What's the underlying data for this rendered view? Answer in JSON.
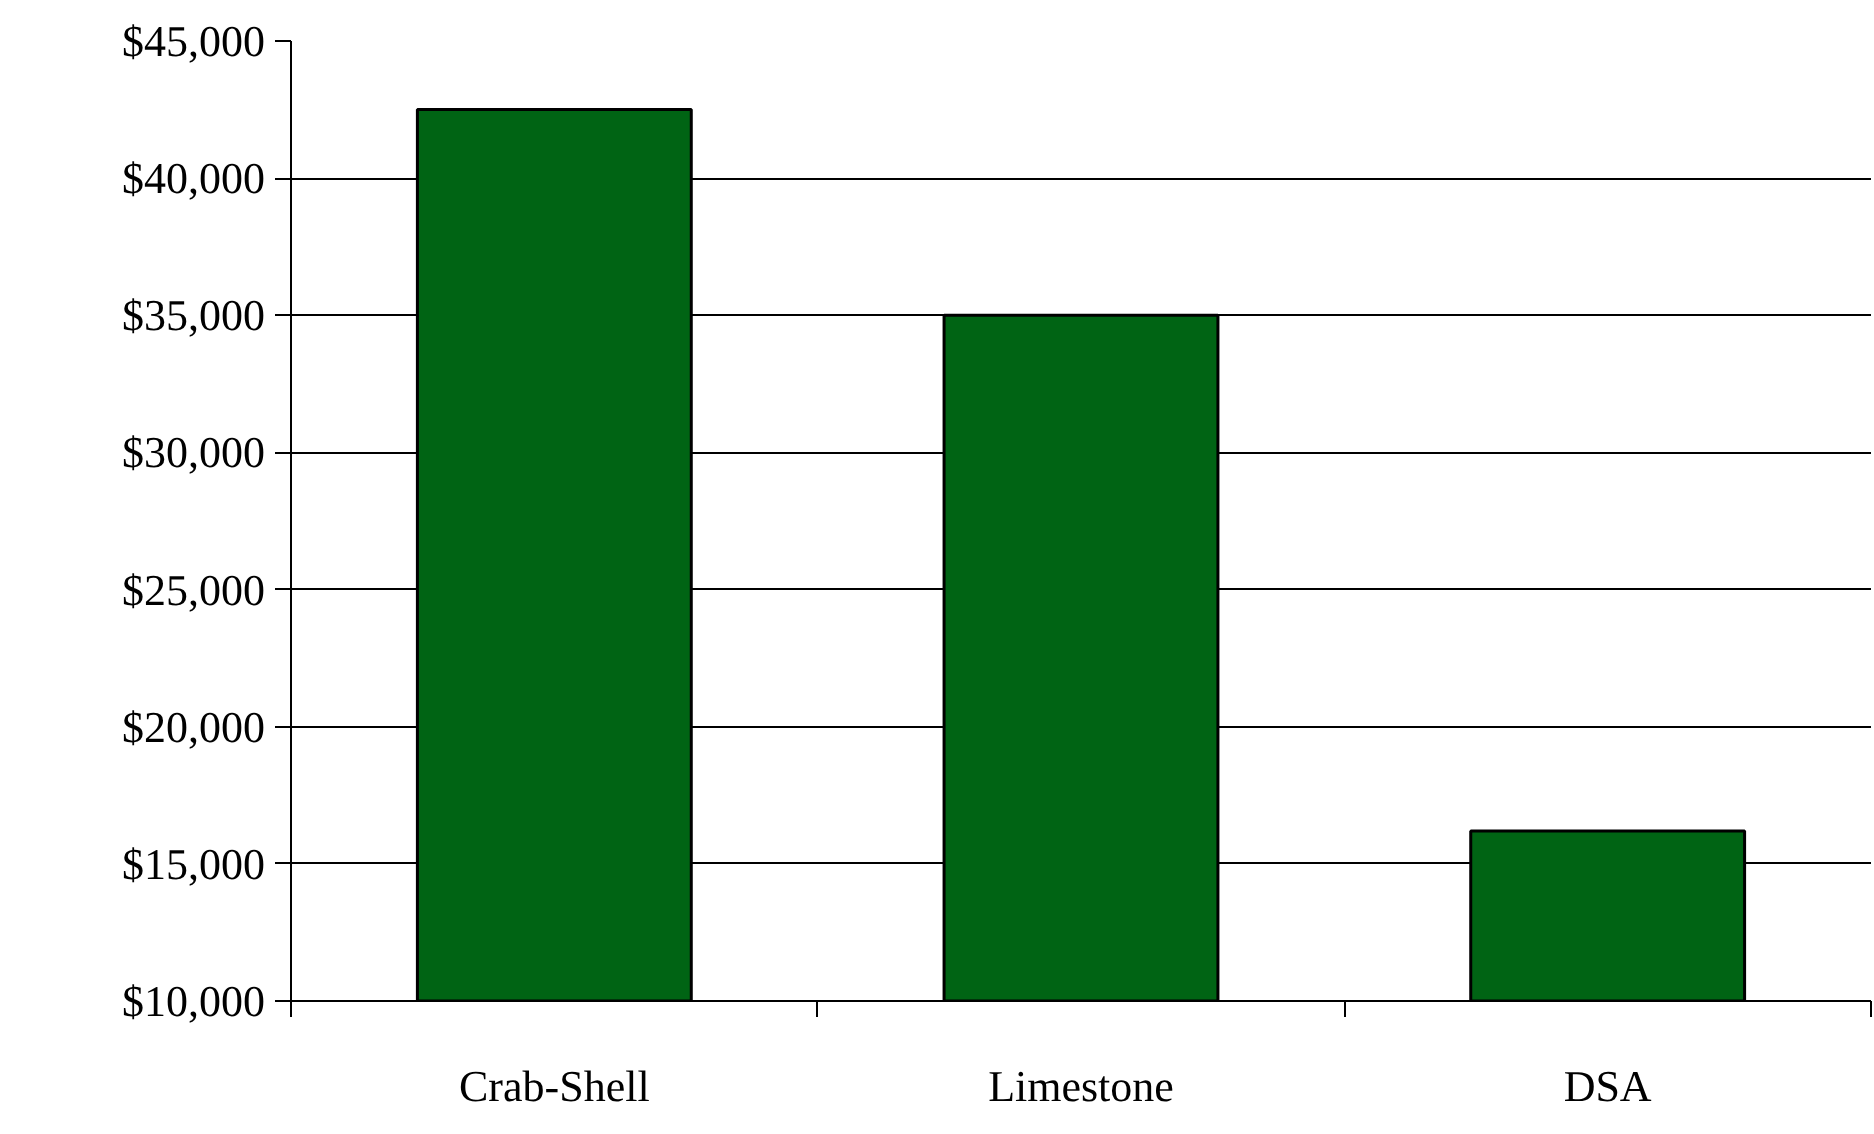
{
  "chart_data": {
    "type": "bar",
    "categories": [
      "Crab-Shell",
      "Limestone",
      "DSA"
    ],
    "values": [
      42500,
      35000,
      16200
    ],
    "color": "#006414",
    "ylim": [
      10000,
      45000
    ],
    "yticks": [
      {
        "value": 10000,
        "label": "$10,000"
      },
      {
        "value": 15000,
        "label": "$15,000"
      },
      {
        "value": 20000,
        "label": "$20,000"
      },
      {
        "value": 25000,
        "label": "$25,000"
      },
      {
        "value": 30000,
        "label": "$30,000"
      },
      {
        "value": 35000,
        "label": "$35,000"
      },
      {
        "value": 40000,
        "label": "$40,000"
      },
      {
        "value": 45000,
        "label": "$45,000"
      }
    ],
    "grid": "y"
  }
}
